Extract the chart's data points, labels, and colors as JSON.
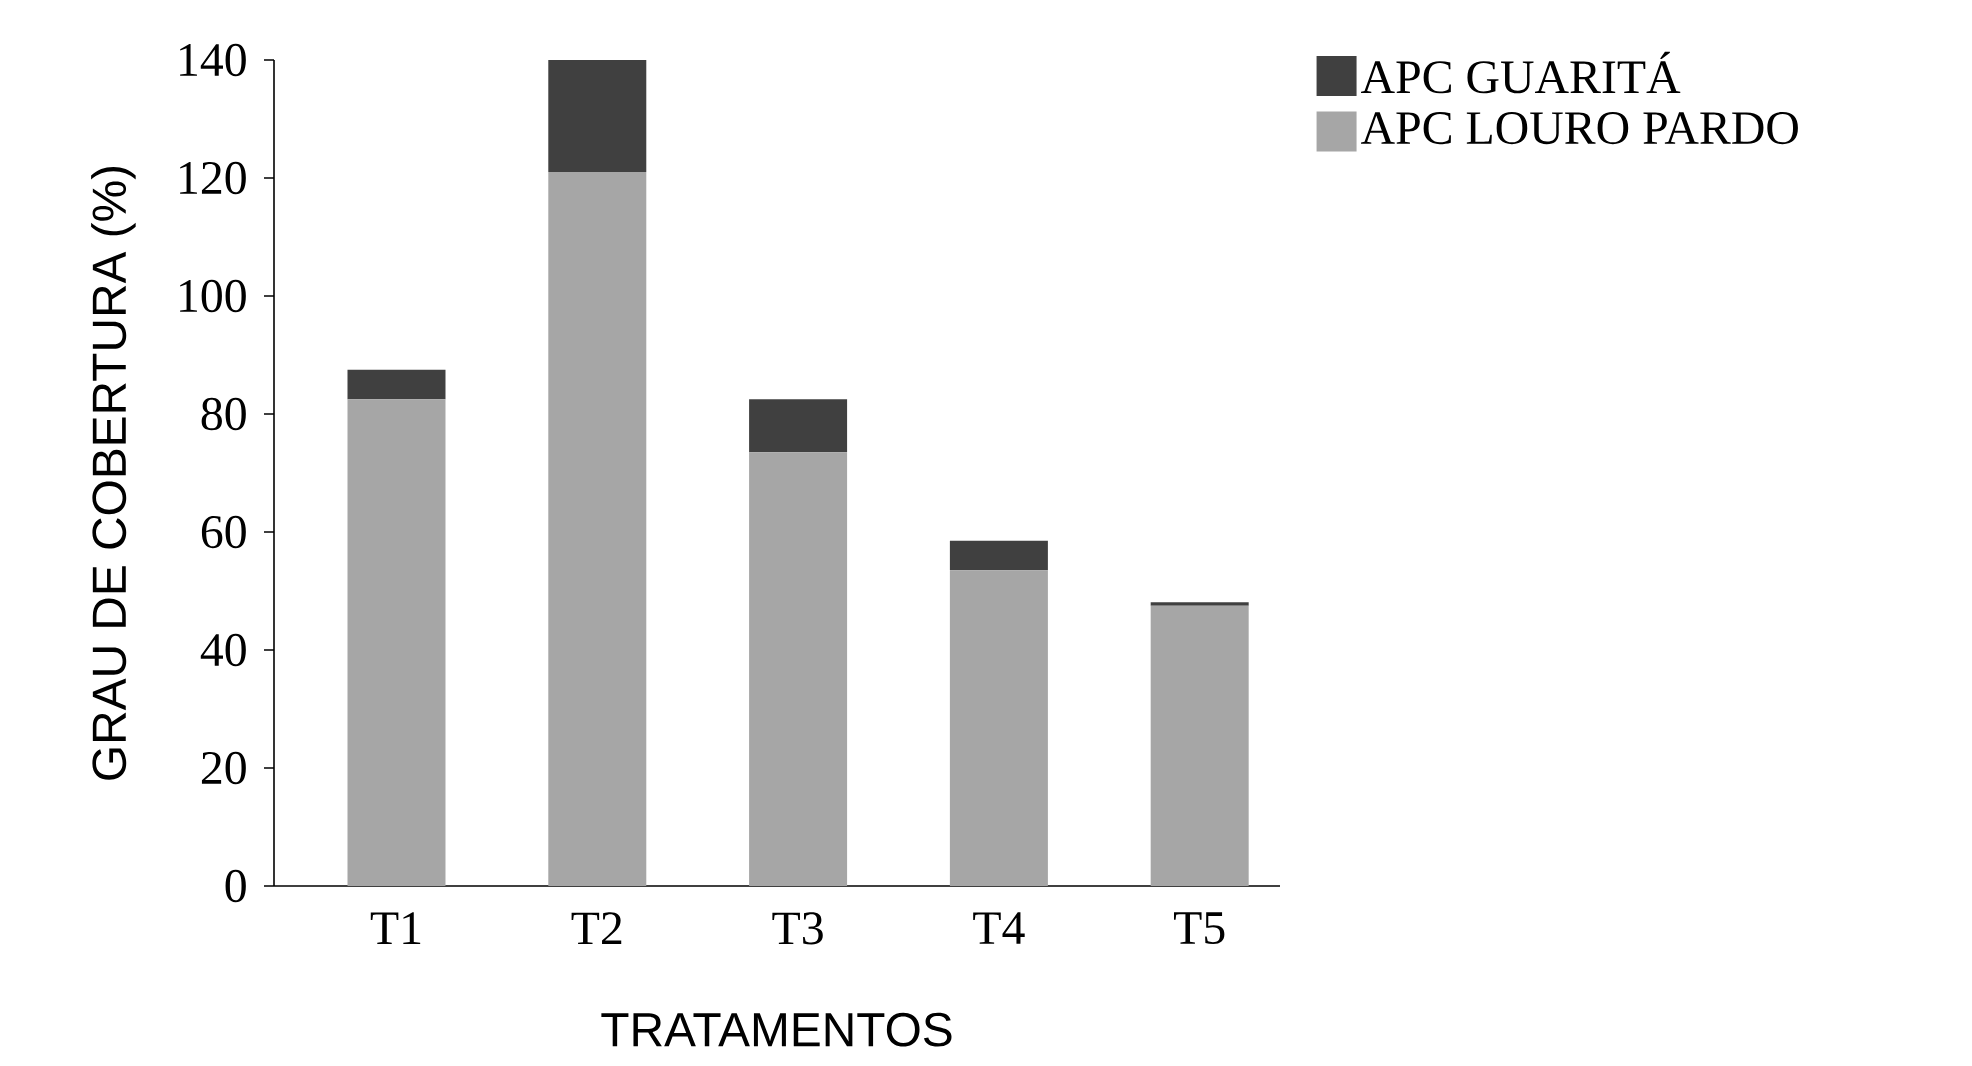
{
  "chart_data": {
    "type": "bar",
    "stacked": true,
    "xlabel": "TRATAMENTOS",
    "ylabel": "GRAU DE COBERTURA (%)",
    "categories": [
      "T1",
      "T2",
      "T3",
      "T4",
      "T5"
    ],
    "series": [
      {
        "name": "APC LOURO PARDO",
        "color": "#a6a6a6",
        "values": [
          82.5,
          121,
          73.5,
          53.5,
          47.5
        ]
      },
      {
        "name": "APC GUARITÁ",
        "color": "#404040",
        "values": [
          5,
          19,
          9,
          5,
          0.6
        ]
      }
    ],
    "ylim": [
      0,
      140
    ],
    "yticks": [
      0,
      20,
      40,
      60,
      80,
      100,
      120,
      140
    ],
    "legend": "top right",
    "grid": false
  }
}
